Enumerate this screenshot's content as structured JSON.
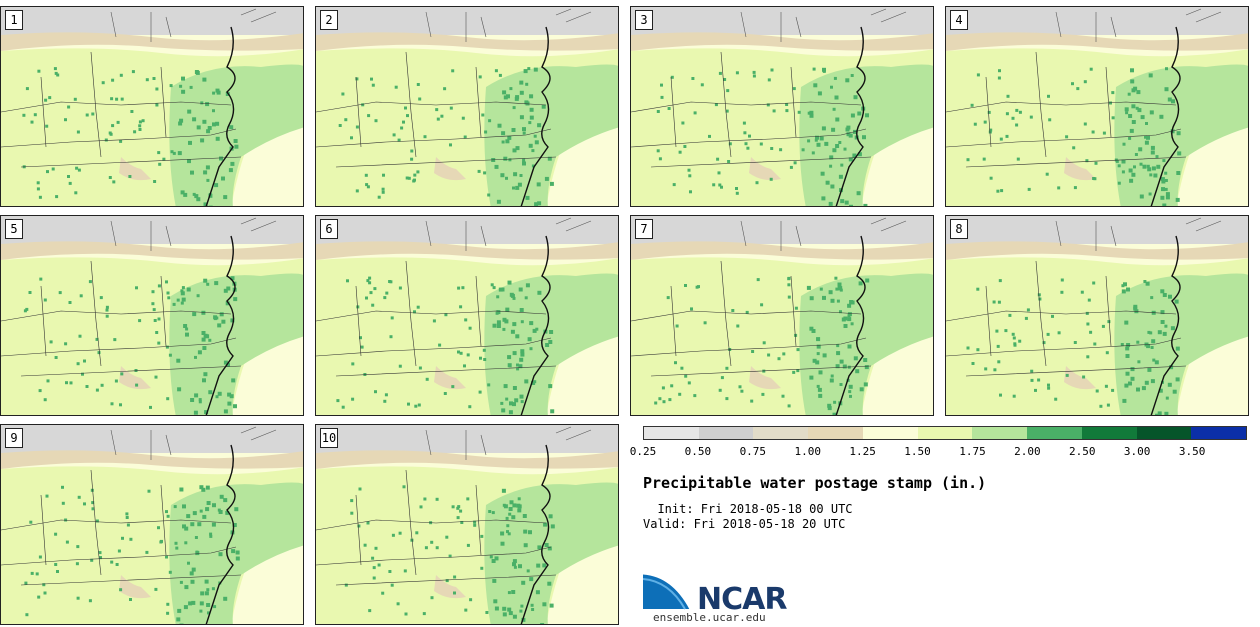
{
  "title": "Precipitable water postage stamp (in.)",
  "init_label": "  Init: Fri 2018-05-18 00 UTC",
  "valid_label": "Valid: Fri 2018-05-18 20 UTC",
  "logo_text": "NCAR",
  "url": "ensemble.ucar.edu",
  "members": [
    "1",
    "2",
    "3",
    "4",
    "5",
    "6",
    "7",
    "8",
    "9",
    "10"
  ],
  "colorbar": {
    "colors": [
      "#e6e6e6",
      "#cfcfcf",
      "#e2dcc8",
      "#e6d8b6",
      "#fbfdd8",
      "#e9f8b0",
      "#b5e59c",
      "#4ab067",
      "#117a3a",
      "#06552a",
      "#0b2fa8"
    ],
    "ticks": [
      "0.25",
      "0.50",
      "0.75",
      "1.00",
      "1.25",
      "1.50",
      "1.75",
      "2.00",
      "2.50",
      "3.00",
      "3.50"
    ]
  },
  "colors": {
    "bg_pale": "#fbfdd8",
    "light_green": "#e9f8b0",
    "mid_green": "#b5e59c",
    "dark_green": "#4ab067",
    "tan": "#e6d8b6",
    "gray": "#d7d7d7"
  }
}
